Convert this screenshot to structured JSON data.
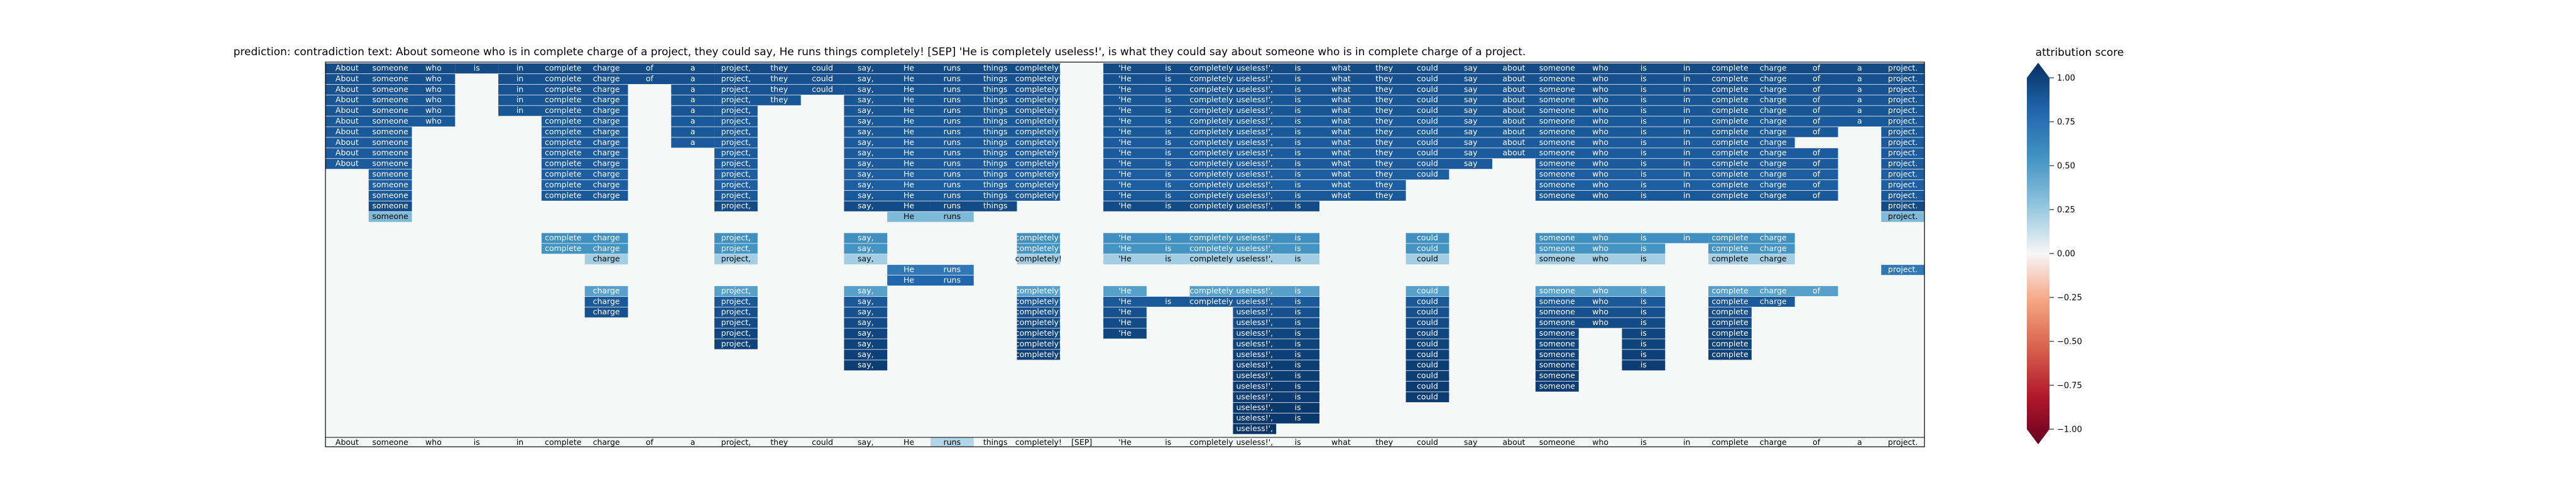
{
  "chart_data": {
    "type": "heatmap",
    "title": "prediction:  contradiction     text:  About someone who is in complete charge of a project, they could say, He runs things completely! [SEP] 'He is completely useless!', is what they could say about someone who is in complete charge of a project.",
    "prediction": "contradiction",
    "tokens": [
      "About",
      "someone",
      "who",
      "is",
      "in",
      "complete",
      "charge",
      "of",
      "a",
      "project,",
      "they",
      "could",
      "say,",
      "He",
      "runs",
      "things",
      "completely!",
      "[SEP]",
      "'He",
      "is",
      "completely",
      "useless!',",
      "is",
      "what",
      "they",
      "could",
      "say",
      "about",
      "someone",
      "who",
      "is",
      "in",
      "complete",
      "charge",
      "of",
      "a",
      "project."
    ],
    "row_spans": [
      [
        [
          0,
          2
        ],
        [
          3,
          3
        ],
        [
          4,
          8
        ],
        [
          9,
          16
        ],
        [
          18,
          36
        ]
      ],
      [
        [
          0,
          2
        ],
        [
          4,
          8
        ],
        [
          9,
          16
        ],
        [
          18,
          36
        ]
      ],
      [
        [
          0,
          2
        ],
        [
          4,
          6
        ],
        [
          8,
          8
        ],
        [
          9,
          11
        ],
        [
          12,
          16
        ],
        [
          18,
          36
        ]
      ],
      [
        [
          0,
          2
        ],
        [
          4,
          6
        ],
        [
          8,
          8
        ],
        [
          9,
          10
        ],
        [
          12,
          16
        ],
        [
          18,
          36
        ]
      ],
      [
        [
          0,
          2
        ],
        [
          4,
          6
        ],
        [
          8,
          8
        ],
        [
          9,
          9
        ],
        [
          12,
          16
        ],
        [
          18,
          36
        ]
      ],
      [
        [
          0,
          2
        ],
        [
          5,
          6
        ],
        [
          8,
          8
        ],
        [
          9,
          9
        ],
        [
          12,
          16
        ],
        [
          18,
          36
        ]
      ],
      [
        [
          0,
          1
        ],
        [
          5,
          6
        ],
        [
          8,
          8
        ],
        [
          9,
          9
        ],
        [
          12,
          16
        ],
        [
          18,
          34
        ],
        [
          36,
          36
        ]
      ],
      [
        [
          0,
          1
        ],
        [
          5,
          6
        ],
        [
          8,
          8
        ],
        [
          9,
          9
        ],
        [
          12,
          16
        ],
        [
          18,
          33
        ],
        [
          36,
          36
        ]
      ],
      [
        [
          0,
          1
        ],
        [
          5,
          6
        ],
        [
          9,
          9
        ],
        [
          12,
          16
        ],
        [
          18,
          27
        ],
        [
          28,
          34
        ],
        [
          36,
          36
        ]
      ],
      [
        [
          0,
          1
        ],
        [
          5,
          6
        ],
        [
          9,
          9
        ],
        [
          12,
          16
        ],
        [
          18,
          26
        ],
        [
          28,
          34
        ],
        [
          36,
          36
        ]
      ],
      [
        [
          1,
          1
        ],
        [
          5,
          6
        ],
        [
          9,
          9
        ],
        [
          12,
          16
        ],
        [
          18,
          25
        ],
        [
          28,
          34
        ],
        [
          36,
          36
        ]
      ],
      [
        [
          1,
          1
        ],
        [
          5,
          6
        ],
        [
          9,
          9
        ],
        [
          12,
          16
        ],
        [
          18,
          24
        ],
        [
          28,
          34
        ],
        [
          36,
          36
        ]
      ],
      [
        [
          1,
          1
        ],
        [
          5,
          6
        ],
        [
          9,
          9
        ],
        [
          12,
          16
        ],
        [
          18,
          24
        ],
        [
          28,
          34
        ],
        [
          36,
          36
        ]
      ],
      [
        [
          1,
          1
        ],
        [
          9,
          9
        ],
        [
          12,
          13
        ],
        [
          14,
          15
        ],
        [
          18,
          22
        ],
        [
          36,
          36
        ]
      ],
      [
        [
          1,
          1
        ],
        [
          13,
          14
        ],
        [
          36,
          36
        ]
      ],
      [],
      [
        [
          5,
          6
        ],
        [
          9,
          9
        ],
        [
          12,
          12
        ],
        [
          16,
          16
        ],
        [
          18,
          19
        ],
        [
          20,
          22
        ],
        [
          25,
          25
        ],
        [
          28,
          31
        ],
        [
          32,
          33
        ]
      ],
      [
        [
          5,
          6
        ],
        [
          9,
          9
        ],
        [
          12,
          12
        ],
        [
          16,
          16
        ],
        [
          18,
          19
        ],
        [
          20,
          22
        ],
        [
          25,
          25
        ],
        [
          28,
          30
        ],
        [
          32,
          33
        ]
      ],
      [
        [
          6,
          6
        ],
        [
          9,
          9
        ],
        [
          12,
          12
        ],
        [
          16,
          16
        ],
        [
          18,
          19
        ],
        [
          20,
          22
        ],
        [
          25,
          25
        ],
        [
          28,
          30
        ],
        [
          32,
          33
        ]
      ],
      [
        [
          13,
          14
        ],
        [
          36,
          36
        ]
      ],
      [
        [
          13,
          14
        ]
      ],
      [
        [
          6,
          6
        ],
        [
          9,
          9
        ],
        [
          12,
          12
        ],
        [
          16,
          16
        ],
        [
          18,
          18
        ],
        [
          20,
          22
        ],
        [
          25,
          25
        ],
        [
          28,
          30
        ],
        [
          32,
          34
        ]
      ],
      [
        [
          6,
          6
        ],
        [
          9,
          9
        ],
        [
          12,
          12
        ],
        [
          16,
          16
        ],
        [
          18,
          19
        ],
        [
          20,
          22
        ],
        [
          25,
          25
        ],
        [
          28,
          30
        ],
        [
          32,
          33
        ]
      ],
      [
        [
          6,
          6
        ],
        [
          9,
          9
        ],
        [
          12,
          12
        ],
        [
          16,
          16
        ],
        [
          18,
          18
        ],
        [
          21,
          22
        ],
        [
          25,
          25
        ],
        [
          28,
          30
        ],
        [
          32,
          32
        ]
      ],
      [
        [
          9,
          9
        ],
        [
          12,
          12
        ],
        [
          16,
          16
        ],
        [
          18,
          18
        ],
        [
          21,
          22
        ],
        [
          25,
          25
        ],
        [
          28,
          29
        ],
        [
          30,
          30
        ],
        [
          32,
          32
        ]
      ],
      [
        [
          9,
          9
        ],
        [
          12,
          12
        ],
        [
          16,
          16
        ],
        [
          18,
          18
        ],
        [
          21,
          22
        ],
        [
          25,
          25
        ],
        [
          28,
          28
        ],
        [
          30,
          30
        ],
        [
          32,
          32
        ]
      ],
      [
        [
          9,
          9
        ],
        [
          12,
          12
        ],
        [
          16,
          16
        ],
        [
          21,
          22
        ],
        [
          25,
          25
        ],
        [
          28,
          28
        ],
        [
          30,
          30
        ],
        [
          32,
          32
        ]
      ],
      [
        [
          12,
          12
        ],
        [
          16,
          16
        ],
        [
          21,
          22
        ],
        [
          25,
          25
        ],
        [
          28,
          28
        ],
        [
          30,
          30
        ],
        [
          32,
          32
        ]
      ],
      [
        [
          12,
          12
        ],
        [
          21,
          22
        ],
        [
          25,
          25
        ],
        [
          28,
          28
        ],
        [
          30,
          30
        ]
      ],
      [
        [
          21,
          22
        ],
        [
          25,
          25
        ],
        [
          28,
          28
        ]
      ],
      [
        [
          21,
          22
        ],
        [
          25,
          25
        ],
        [
          28,
          28
        ]
      ],
      [
        [
          21,
          22
        ],
        [
          25,
          25
        ]
      ],
      [
        [
          21,
          22
        ]
      ],
      [
        [
          21,
          22
        ]
      ],
      [
        [
          21,
          21
        ]
      ]
    ],
    "row_scores": [
      0.9,
      0.88,
      0.87,
      0.86,
      0.86,
      0.85,
      0.85,
      0.84,
      0.84,
      0.84,
      0.83,
      0.83,
      0.85,
      0.9,
      0.45,
      0,
      0.62,
      0.6,
      0.35,
      0.72,
      0.8,
      0.55,
      0.85,
      0.88,
      0.9,
      0.92,
      0.93,
      0.94,
      0.95,
      0.95,
      0.96,
      0.96,
      0.97,
      0.97,
      0.98
    ],
    "bottom_row_highlight": {
      "token_index": 14,
      "score": 0.3
    },
    "xlabel": "",
    "ylabel": "",
    "colorbar": {
      "title": "attribution score",
      "ticks": [
        "1.00",
        "0.75",
        "0.50",
        "0.25",
        "0.00",
        "−0.25",
        "−0.50",
        "−0.75",
        "−1.00"
      ],
      "colormap": "RdBu",
      "range": [
        -1,
        1
      ]
    },
    "colors": {
      "positive": "#08306b",
      "zero": "#f7f7f7",
      "negative": "#67001f",
      "background": "#f6f7f7"
    }
  }
}
